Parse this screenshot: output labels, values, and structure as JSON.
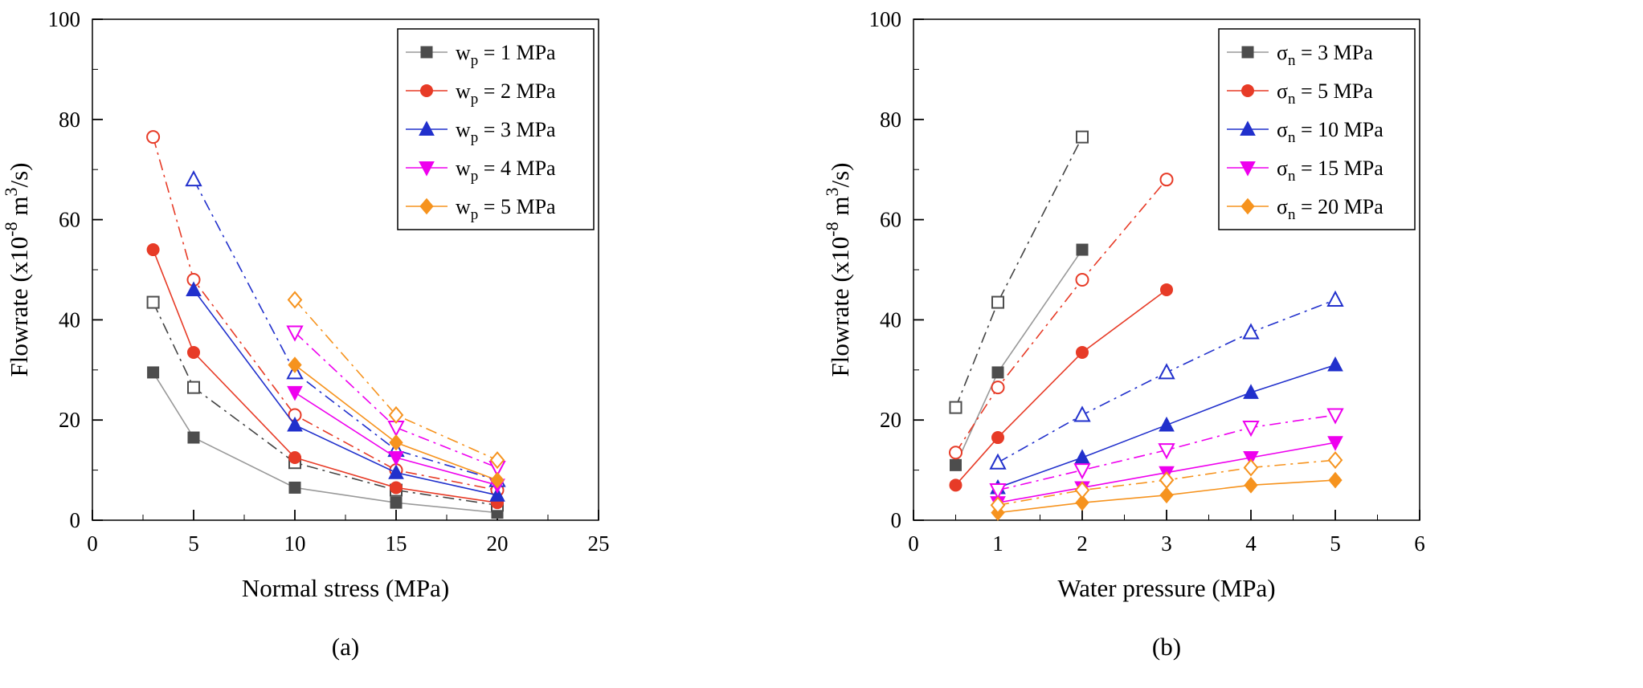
{
  "figure": {
    "background": "#ffffff",
    "caption_a": "(a)",
    "caption_b": "(b)"
  },
  "chart_data": [
    {
      "id": "panel-a",
      "type": "line",
      "caption": "(a)",
      "xlabel": "Normal stress (MPa)",
      "ylabel_text": "Flowrate (x10^-8 m^3/s)",
      "ylabel_parts": [
        {
          "t": "Flowrate (x10"
        },
        {
          "t": "-8",
          "sup": true
        },
        {
          "t": " m"
        },
        {
          "t": "3",
          "sup": true
        },
        {
          "t": "/s)"
        }
      ],
      "xlim": [
        0,
        25
      ],
      "xticks": [
        0,
        5,
        10,
        15,
        20,
        25
      ],
      "x_minor_step": 2.5,
      "ylim": [
        0,
        100
      ],
      "yticks": [
        0,
        20,
        40,
        60,
        80,
        100
      ],
      "y_minor_step": 10,
      "grid": false,
      "legend_position": "top-right",
      "legend": [
        {
          "pre": "w",
          "sub": "p",
          "post": " = 1 MPa",
          "marker": "square",
          "color": "#4d4d4d",
          "line_color": "#999999"
        },
        {
          "pre": "w",
          "sub": "p",
          "post": " = 2 MPa",
          "marker": "circle",
          "color": "#e73b27"
        },
        {
          "pre": "w",
          "sub": "p",
          "post": " = 3 MPa",
          "marker": "triangle-up",
          "color": "#2130cc"
        },
        {
          "pre": "w",
          "sub": "p",
          "post": " = 4 MPa",
          "marker": "triangle-down",
          "color": "#ee00ee"
        },
        {
          "pre": "w",
          "sub": "p",
          "post": " = 5 MPa",
          "marker": "diamond",
          "color": "#f6931e"
        }
      ],
      "series": [
        {
          "name": "wp = 1 MPa (filled markers, solid line)",
          "marker": "square",
          "open": false,
          "color": "#4d4d4d",
          "line_color": "#999999",
          "line_style": "solid",
          "x": [
            3,
            5,
            10,
            15,
            20
          ],
          "y": [
            29.5,
            16.5,
            6.5,
            3.5,
            1.5
          ]
        },
        {
          "name": "wp = 1 MPa (open markers, dash-dot line)",
          "marker": "square",
          "open": true,
          "color": "#4d4d4d",
          "line_color": "#444444",
          "line_style": "dashdot",
          "x": [
            3,
            5,
            10,
            15,
            20
          ],
          "y": [
            43.5,
            26.5,
            11.5,
            6,
            3
          ]
        },
        {
          "name": "wp = 2 MPa (filled markers, solid line)",
          "marker": "circle",
          "open": false,
          "color": "#e73b27",
          "line_style": "solid",
          "x": [
            3,
            5,
            10,
            15,
            20
          ],
          "y": [
            54,
            33.5,
            12.5,
            6.5,
            3.5
          ]
        },
        {
          "name": "wp = 2 MPa (open markers, dash-dot line)",
          "marker": "circle",
          "open": true,
          "color": "#e73b27",
          "line_style": "dashdot",
          "x": [
            3,
            5,
            10,
            15,
            20
          ],
          "y": [
            76.5,
            48,
            21,
            10,
            6
          ]
        },
        {
          "name": "wp = 3 MPa (filled markers, solid line)",
          "marker": "triangle-up",
          "open": false,
          "color": "#2130cc",
          "line_style": "solid",
          "x": [
            5,
            10,
            15,
            20
          ],
          "y": [
            46,
            19,
            9.5,
            5
          ]
        },
        {
          "name": "wp = 3 MPa (open markers, dash-dot line)",
          "marker": "triangle-up",
          "open": true,
          "color": "#2130cc",
          "line_style": "dashdot",
          "x": [
            5,
            10,
            15,
            20
          ],
          "y": [
            68,
            29.5,
            14,
            8
          ]
        },
        {
          "name": "wp = 4 MPa (filled markers, solid line)",
          "marker": "triangle-down",
          "open": false,
          "color": "#ee00ee",
          "line_style": "solid",
          "x": [
            10,
            15,
            20
          ],
          "y": [
            25.5,
            12.5,
            7
          ]
        },
        {
          "name": "wp = 4 MPa (open markers, dash-dot line)",
          "marker": "triangle-down",
          "open": true,
          "color": "#ee00ee",
          "line_style": "dashdot",
          "x": [
            10,
            15,
            20
          ],
          "y": [
            37.5,
            18.5,
            10.5
          ]
        },
        {
          "name": "wp = 5 MPa (filled markers, solid line)",
          "marker": "diamond",
          "open": false,
          "color": "#f6931e",
          "line_style": "solid",
          "x": [
            10,
            15,
            20
          ],
          "y": [
            31,
            15.5,
            8
          ]
        },
        {
          "name": "wp = 5 MPa (open markers, dash-dot line)",
          "marker": "diamond",
          "open": true,
          "color": "#f6931e",
          "line_style": "dashdot",
          "x": [
            10,
            15,
            20
          ],
          "y": [
            44,
            21,
            12
          ]
        }
      ]
    },
    {
      "id": "panel-b",
      "type": "line",
      "caption": "(b)",
      "xlabel": "Water pressure (MPa)",
      "ylabel_text": "Flowrate (x10^-8 m^3/s)",
      "ylabel_parts": [
        {
          "t": "Flowrate (x10"
        },
        {
          "t": "-8",
          "sup": true
        },
        {
          "t": " m"
        },
        {
          "t": "3",
          "sup": true
        },
        {
          "t": "/s)"
        }
      ],
      "xlim": [
        0,
        6
      ],
      "xticks": [
        0,
        1,
        2,
        3,
        4,
        5,
        6
      ],
      "x_minor_step": 0.5,
      "ylim": [
        0,
        100
      ],
      "yticks": [
        0,
        20,
        40,
        60,
        80,
        100
      ],
      "y_minor_step": 10,
      "grid": false,
      "legend_position": "top-right",
      "legend": [
        {
          "pre": "σ",
          "sub": "n",
          "post": " = 3 MPa",
          "marker": "square",
          "color": "#4d4d4d",
          "line_color": "#999999"
        },
        {
          "pre": "σ",
          "sub": "n",
          "post": " = 5 MPa",
          "marker": "circle",
          "color": "#e73b27"
        },
        {
          "pre": "σ",
          "sub": "n",
          "post": " = 10 MPa",
          "marker": "triangle-up",
          "color": "#2130cc"
        },
        {
          "pre": "σ",
          "sub": "n",
          "post": " = 15 MPa",
          "marker": "triangle-down",
          "color": "#ee00ee"
        },
        {
          "pre": "σ",
          "sub": "n",
          "post": " = 20 MPa",
          "marker": "diamond",
          "color": "#f6931e"
        }
      ],
      "series": [
        {
          "name": "σn = 3 MPa (filled markers, solid line)",
          "marker": "square",
          "open": false,
          "color": "#4d4d4d",
          "line_color": "#999999",
          "line_style": "solid",
          "x": [
            0.5,
            1,
            2
          ],
          "y": [
            11,
            29.5,
            54
          ]
        },
        {
          "name": "σn = 3 MPa (open markers, dash-dot line)",
          "marker": "square",
          "open": true,
          "color": "#4d4d4d",
          "line_color": "#444444",
          "line_style": "dashdot",
          "x": [
            0.5,
            1,
            2
          ],
          "y": [
            22.5,
            43.5,
            76.5
          ]
        },
        {
          "name": "σn = 5 MPa (filled markers, solid line)",
          "marker": "circle",
          "open": false,
          "color": "#e73b27",
          "line_style": "solid",
          "x": [
            0.5,
            1,
            2,
            3
          ],
          "y": [
            7,
            16.5,
            33.5,
            46
          ]
        },
        {
          "name": "σn = 5 MPa (open markers, dash-dot line)",
          "marker": "circle",
          "open": true,
          "color": "#e73b27",
          "line_style": "dashdot",
          "x": [
            0.5,
            1,
            2,
            3
          ],
          "y": [
            13.5,
            26.5,
            48,
            68
          ]
        },
        {
          "name": "σn = 10 MPa (filled markers, solid line)",
          "marker": "triangle-up",
          "open": false,
          "color": "#2130cc",
          "line_style": "solid",
          "x": [
            1,
            2,
            3,
            4,
            5
          ],
          "y": [
            6.5,
            12.5,
            19,
            25.5,
            31
          ]
        },
        {
          "name": "σn = 10 MPa (open markers, dash-dot line)",
          "marker": "triangle-up",
          "open": true,
          "color": "#2130cc",
          "line_style": "dashdot",
          "x": [
            1,
            2,
            3,
            4,
            5
          ],
          "y": [
            11.5,
            21,
            29.5,
            37.5,
            44
          ]
        },
        {
          "name": "σn = 15 MPa (filled markers, solid line)",
          "marker": "triangle-down",
          "open": false,
          "color": "#ee00ee",
          "line_style": "solid",
          "x": [
            1,
            2,
            3,
            4,
            5
          ],
          "y": [
            3.5,
            6.5,
            9.5,
            12.5,
            15.5
          ]
        },
        {
          "name": "σn = 15 MPa (open markers, dash-dot line)",
          "marker": "triangle-down",
          "open": true,
          "color": "#ee00ee",
          "line_style": "dashdot",
          "x": [
            1,
            2,
            3,
            4,
            5
          ],
          "y": [
            6,
            10,
            14,
            18.5,
            21
          ]
        },
        {
          "name": "σn = 20 MPa (filled markers, solid line)",
          "marker": "diamond",
          "open": false,
          "color": "#f6931e",
          "line_style": "solid",
          "x": [
            1,
            2,
            3,
            4,
            5
          ],
          "y": [
            1.5,
            3.5,
            5,
            7,
            8
          ]
        },
        {
          "name": "σn = 20 MPa (open markers, dash-dot line)",
          "marker": "diamond",
          "open": true,
          "color": "#f6931e",
          "line_style": "dashdot",
          "x": [
            1,
            2,
            3,
            4,
            5
          ],
          "y": [
            3,
            6,
            8,
            10.5,
            12
          ]
        }
      ]
    }
  ]
}
